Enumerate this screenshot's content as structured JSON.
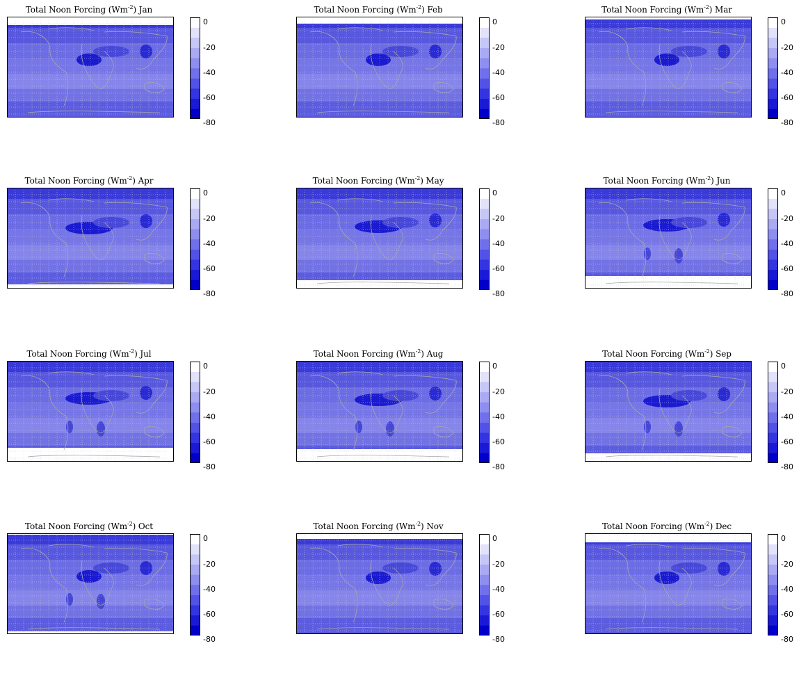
{
  "panels": [
    {
      "label": "Total Noon Forcing (Wm",
      "sup": "-2",
      "month": "Jan"
    },
    {
      "label": "Total Noon Forcing (Wm",
      "sup": "-2",
      "month": "Feb"
    },
    {
      "label": "Total Noon Forcing (Wm",
      "sup": "-2",
      "month": "Mar"
    },
    {
      "label": "Total Noon Forcing (Wm",
      "sup": "-2",
      "month": "Apr"
    },
    {
      "label": "Total Noon Forcing (Wm",
      "sup": "-2",
      "month": "May"
    },
    {
      "label": "Total Noon Forcing (Wm",
      "sup": "-2",
      "month": "Jun"
    },
    {
      "label": "Total Noon Forcing (Wm",
      "sup": "-2",
      "month": "Jul"
    },
    {
      "label": "Total Noon Forcing (Wm",
      "sup": "-2",
      "month": "Aug"
    },
    {
      "label": "Total Noon Forcing (Wm",
      "sup": "-2",
      "month": "Sep"
    },
    {
      "label": "Total Noon Forcing (Wm",
      "sup": "-2",
      "month": "Oct"
    },
    {
      "label": "Total Noon Forcing (Wm",
      "sup": "-2",
      "month": "Nov"
    },
    {
      "label": "Total Noon Forcing (Wm",
      "sup": "-2",
      "month": "Dec"
    }
  ],
  "colorbar": {
    "ticks": [
      "0",
      "-20",
      "-40",
      "-60",
      "-80"
    ],
    "range": [
      -80,
      0
    ],
    "levels": 10,
    "colors": [
      "#0000c8",
      "#1a1ad6",
      "#3434e0",
      "#5252e6",
      "#7070ea",
      "#8e8eef",
      "#aaaaf3",
      "#c6c6f7",
      "#e2e2fb",
      "#ffffff"
    ]
  }
}
